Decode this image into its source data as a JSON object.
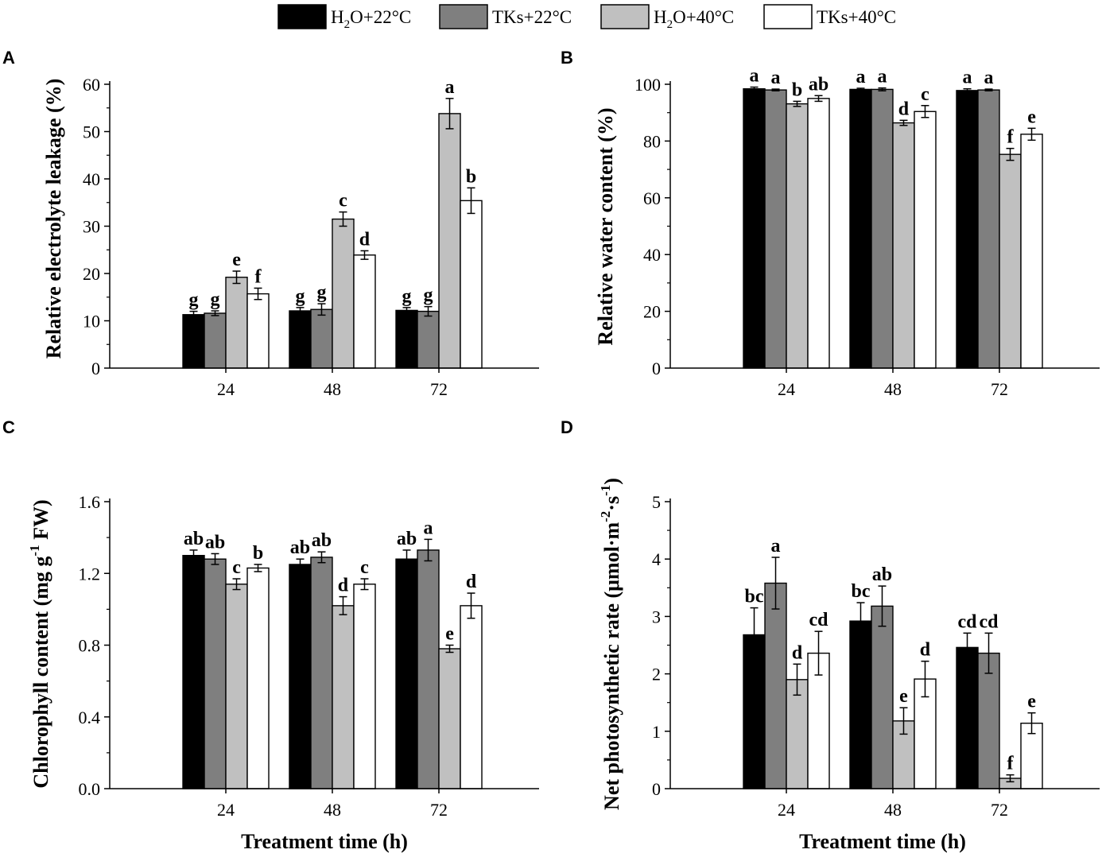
{
  "legend": [
    {
      "label": "H2O+22°C",
      "base": "H",
      "sub": "2",
      "rest": "O+22°C",
      "color": "#000000"
    },
    {
      "label": "TKs+22°C",
      "base": "TKs+22°C",
      "sub": "",
      "rest": "",
      "color": "#7f7f7f"
    },
    {
      "label": "H2O+40°C",
      "base": "H",
      "sub": "2",
      "rest": "O+40°C",
      "color": "#c0c0c0"
    },
    {
      "label": "TKs+40°C",
      "base": "TKs+40°C",
      "sub": "",
      "rest": "",
      "color": "#ffffff"
    }
  ],
  "chart_data": [
    {
      "panel": "A",
      "type": "bar",
      "title": "",
      "xlabel": "",
      "ylabel": "Relative electrolyte leakage (%)",
      "ylim": [
        0,
        60
      ],
      "yticks": [
        0,
        10,
        20,
        30,
        40,
        50,
        60
      ],
      "ytick_labels": [
        "0",
        "10",
        "20",
        "30",
        "40",
        "50",
        "60"
      ],
      "categories": [
        "24",
        "48",
        "72"
      ],
      "series": [
        {
          "name": "H2O+22°C",
          "values": [
            11.3,
            12.1,
            12.2
          ],
          "errors": [
            0.7,
            0.7,
            0.6
          ],
          "letters": [
            "g",
            "g",
            "g"
          ]
        },
        {
          "name": "TKs+22°C",
          "values": [
            11.6,
            12.4,
            12.0
          ],
          "errors": [
            0.5,
            1.2,
            1.0
          ],
          "letters": [
            "g",
            "g",
            "g"
          ]
        },
        {
          "name": "H2O+40°C",
          "values": [
            19.2,
            31.5,
            53.8
          ],
          "errors": [
            1.3,
            1.5,
            3.2
          ],
          "letters": [
            "e",
            "c",
            "a"
          ]
        },
        {
          "name": "TKs+40°C",
          "values": [
            15.7,
            23.9,
            35.4
          ],
          "errors": [
            1.2,
            0.9,
            2.7
          ],
          "letters": [
            "f",
            "d",
            "b"
          ]
        }
      ]
    },
    {
      "panel": "B",
      "type": "bar",
      "title": "",
      "xlabel": "",
      "ylabel": "Relative water content (%)",
      "ylim": [
        0,
        100
      ],
      "yticks": [
        0,
        20,
        40,
        60,
        80,
        100
      ],
      "ytick_labels": [
        "0",
        "20",
        "40",
        "60",
        "80",
        "100"
      ],
      "categories": [
        "24",
        "48",
        "72"
      ],
      "series": [
        {
          "name": "H2O+22°C",
          "values": [
            98.4,
            98.2,
            97.8
          ],
          "errors": [
            0.6,
            0.4,
            0.6
          ],
          "letters": [
            "a",
            "a",
            "a"
          ]
        },
        {
          "name": "TKs+22°C",
          "values": [
            98.0,
            98.2,
            98.0
          ],
          "errors": [
            0.3,
            0.5,
            0.3
          ],
          "letters": [
            "a",
            "a",
            "a"
          ]
        },
        {
          "name": "H2O+40°C",
          "values": [
            93.1,
            86.4,
            75.3
          ],
          "errors": [
            0.9,
            0.9,
            2.1
          ],
          "letters": [
            "b",
            "d",
            "f"
          ]
        },
        {
          "name": "TKs+40°C",
          "values": [
            95.0,
            90.4,
            82.4
          ],
          "errors": [
            1.0,
            2.1,
            2.1
          ],
          "letters": [
            "ab",
            "c",
            "e"
          ]
        }
      ]
    },
    {
      "panel": "C",
      "type": "bar",
      "title": "",
      "xlabel": "Treatment time (h)",
      "ylabel": "Chlorophyll content (mg g-1 FW)",
      "ylim": [
        0,
        1.6
      ],
      "yticks": [
        0,
        0.4,
        0.8,
        1.2,
        1.6
      ],
      "ytick_labels": [
        "0.0",
        "0.4",
        "0.8",
        "1.2",
        "1.6"
      ],
      "categories": [
        "24",
        "48",
        "72"
      ],
      "series": [
        {
          "name": "H2O+22°C",
          "values": [
            1.3,
            1.25,
            1.28
          ],
          "errors": [
            0.03,
            0.03,
            0.05
          ],
          "letters": [
            "ab",
            "ab",
            "ab"
          ]
        },
        {
          "name": "TKs+22°C",
          "values": [
            1.28,
            1.29,
            1.33
          ],
          "errors": [
            0.03,
            0.03,
            0.06
          ],
          "letters": [
            "ab",
            "ab",
            "a"
          ]
        },
        {
          "name": "H2O+40°C",
          "values": [
            1.14,
            1.02,
            0.78
          ],
          "errors": [
            0.03,
            0.05,
            0.02
          ],
          "letters": [
            "c",
            "d",
            "e"
          ]
        },
        {
          "name": "TKs+40°C",
          "values": [
            1.23,
            1.14,
            1.02
          ],
          "errors": [
            0.02,
            0.03,
            0.07
          ],
          "letters": [
            "b",
            "c",
            "d"
          ]
        }
      ]
    },
    {
      "panel": "D",
      "type": "bar",
      "title": "",
      "xlabel": "Treatment time (h)",
      "ylabel": "Net photosynthetic rate (μmol·m-2·s-1)",
      "ylim": [
        0,
        5
      ],
      "yticks": [
        0,
        1,
        2,
        3,
        4,
        5
      ],
      "ytick_labels": [
        "0",
        "1",
        "2",
        "3",
        "4",
        "5"
      ],
      "categories": [
        "24",
        "48",
        "72"
      ],
      "series": [
        {
          "name": "H2O+22°C",
          "values": [
            2.68,
            2.92,
            2.46
          ],
          "errors": [
            0.47,
            0.32,
            0.25
          ],
          "letters": [
            "bc",
            "bc",
            "cd"
          ]
        },
        {
          "name": "TKs+22°C",
          "values": [
            3.58,
            3.18,
            2.36
          ],
          "errors": [
            0.45,
            0.35,
            0.35
          ],
          "letters": [
            "a",
            "ab",
            "cd"
          ]
        },
        {
          "name": "H2O+40°C",
          "values": [
            1.9,
            1.18,
            0.18
          ],
          "errors": [
            0.27,
            0.23,
            0.06
          ],
          "letters": [
            "d",
            "e",
            "f"
          ]
        },
        {
          "name": "TKs+40°C",
          "values": [
            2.36,
            1.91,
            1.14
          ],
          "errors": [
            0.38,
            0.31,
            0.18
          ],
          "letters": [
            "cd",
            "d",
            "e"
          ]
        }
      ]
    }
  ]
}
